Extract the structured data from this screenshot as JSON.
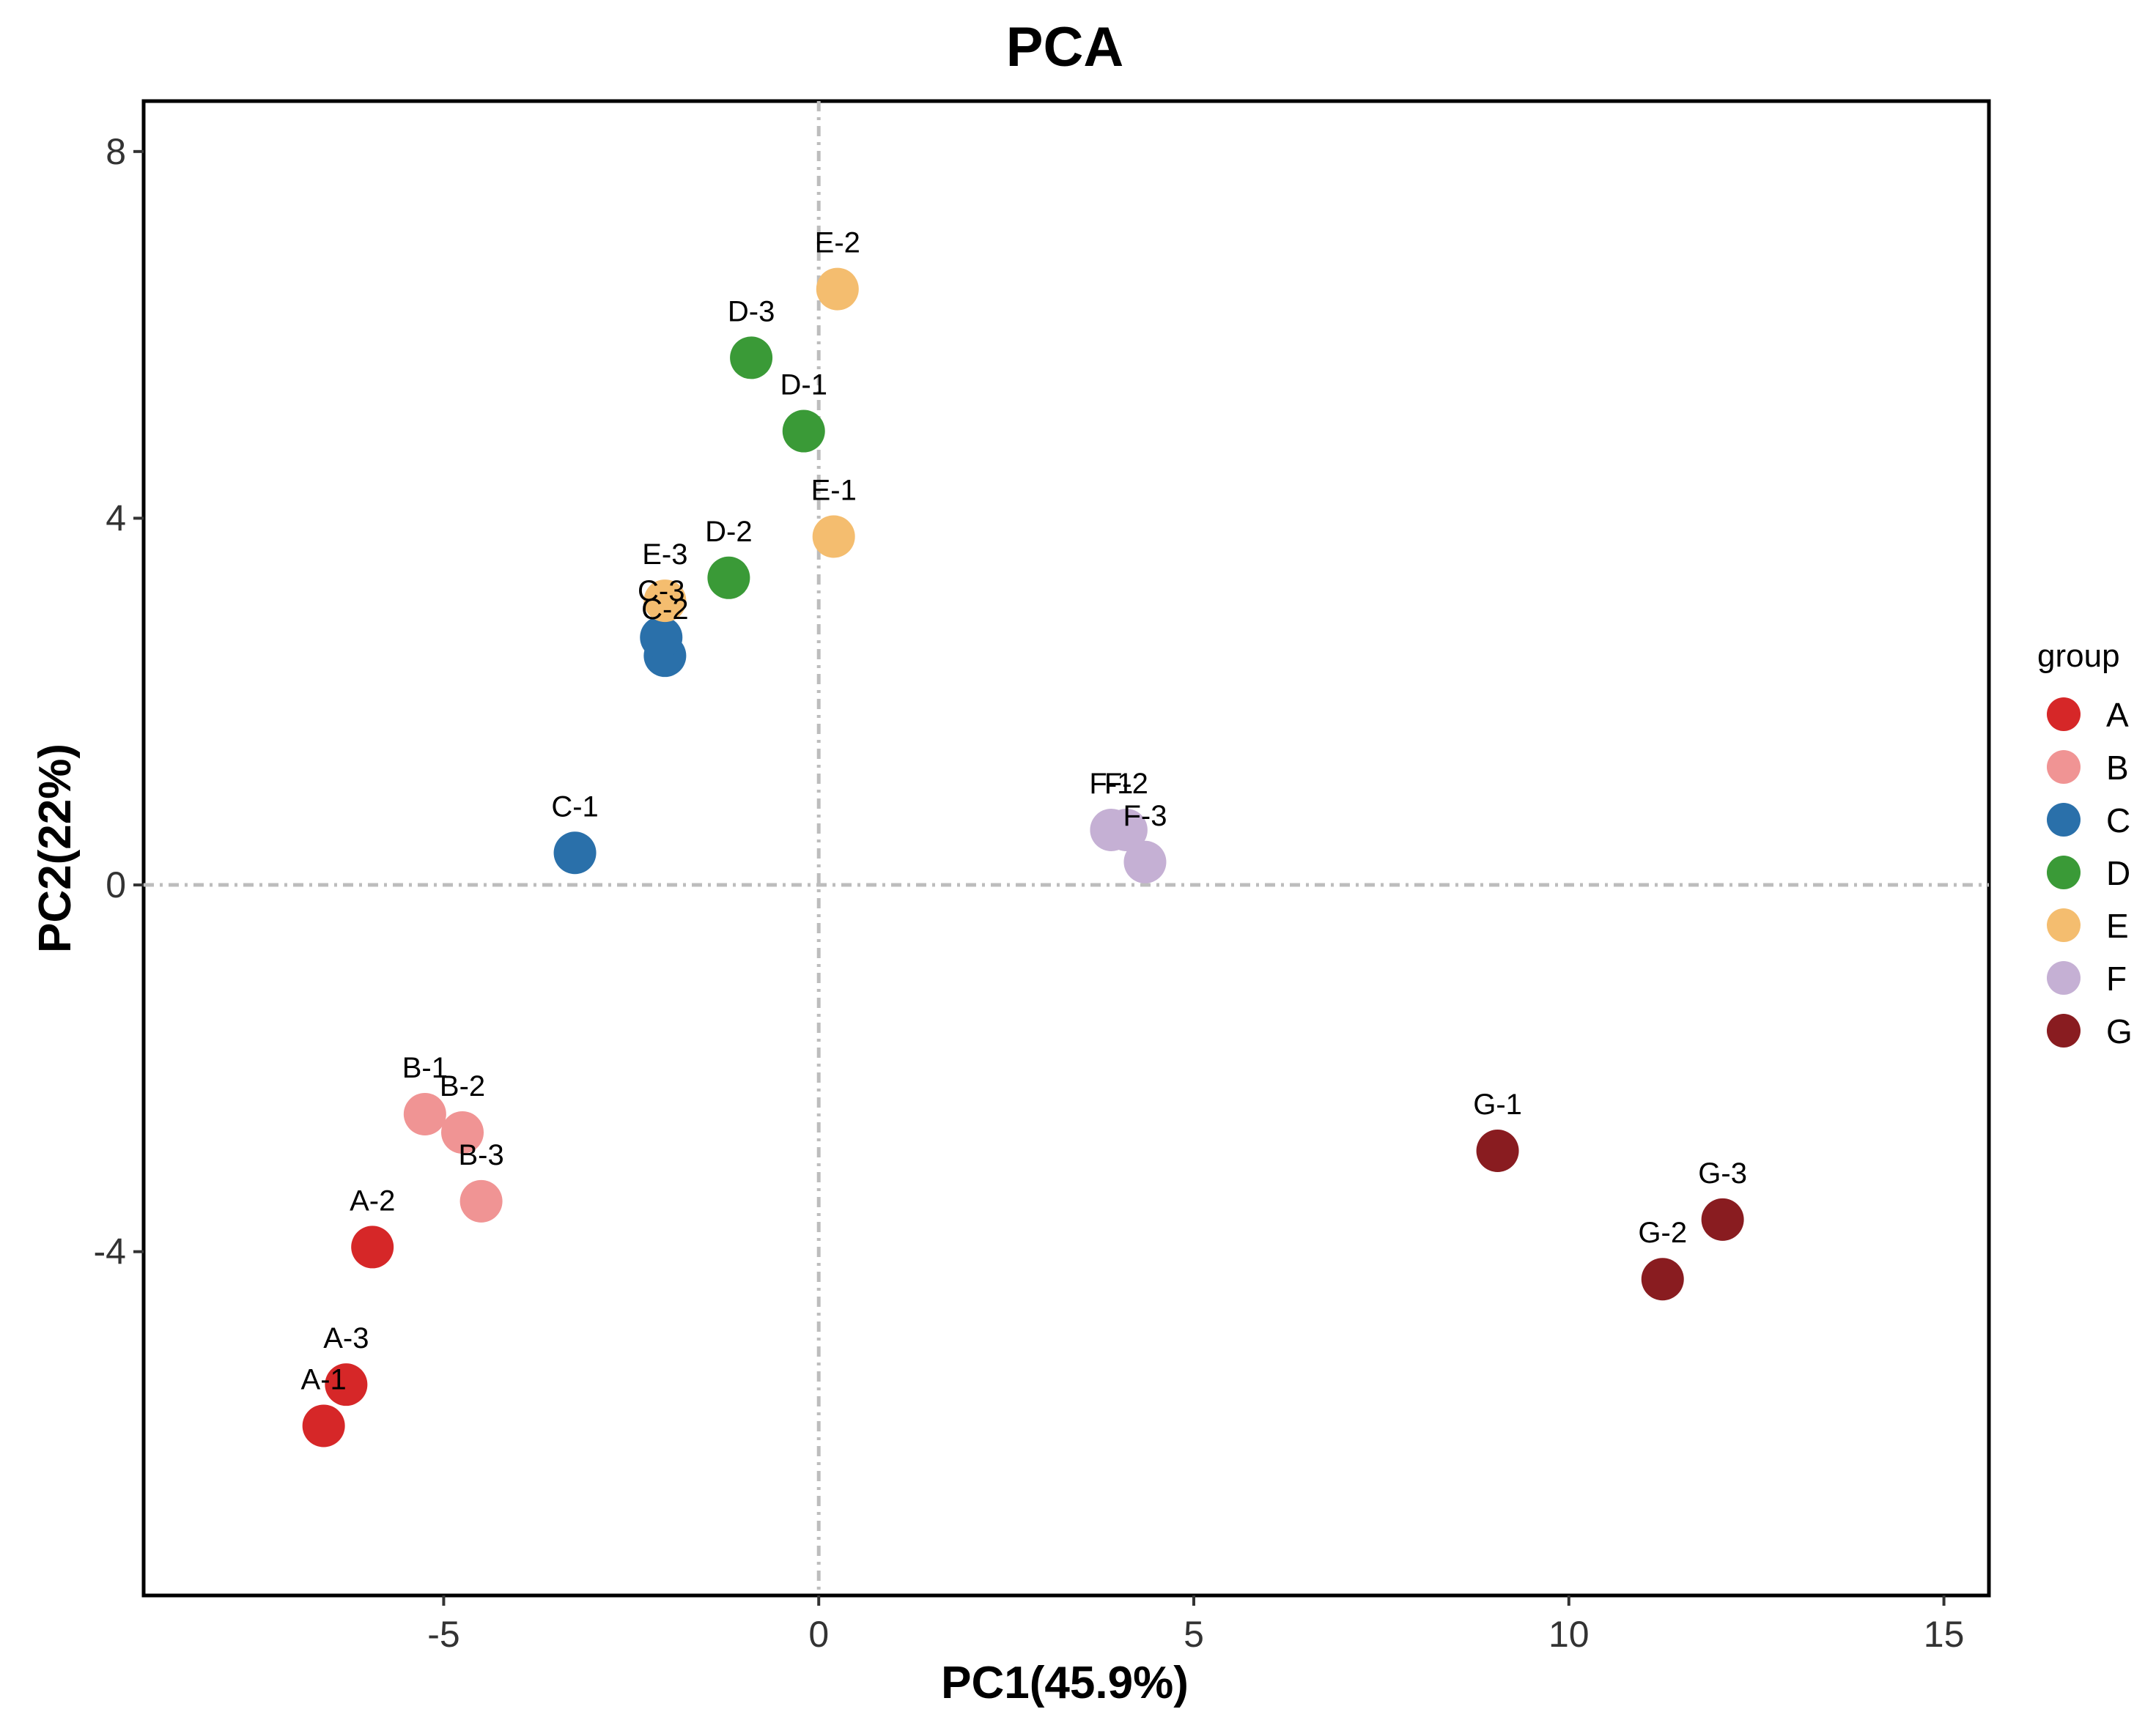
{
  "chart_data": {
    "type": "scatter",
    "title": "PCA",
    "xlabel": "PC1(45.9%)",
    "ylabel": "PC2(22%)",
    "xlim": [
      -9,
      15.6
    ],
    "ylim": [
      -7.75,
      8.55
    ],
    "xticks": [
      -5,
      0,
      5,
      10,
      15
    ],
    "xtick_labels": [
      "-5",
      "0",
      "5",
      "10",
      "15"
    ],
    "yticks": [
      -4,
      0,
      4,
      8
    ],
    "ytick_labels": [
      "-4",
      "0",
      "4",
      "8"
    ],
    "grid": false,
    "reference_lines": {
      "x": 0,
      "y": 0,
      "style": "dash-dot"
    },
    "legend": {
      "title": "group",
      "position": "right",
      "entries": [
        {
          "label": "A",
          "color": "#d62728"
        },
        {
          "label": "B",
          "color": "#f09494"
        },
        {
          "label": "C",
          "color": "#2a70aa"
        },
        {
          "label": "D",
          "color": "#3a9a37"
        },
        {
          "label": "E",
          "color": "#f4bd6f"
        },
        {
          "label": "F",
          "color": "#c5b0d4"
        },
        {
          "label": "G",
          "color": "#891c20"
        }
      ]
    },
    "points": [
      {
        "label": "A-1",
        "group": "A",
        "x": -6.6,
        "y": -5.9
      },
      {
        "label": "A-2",
        "group": "A",
        "x": -5.95,
        "y": -3.95
      },
      {
        "label": "A-3",
        "group": "A",
        "x": -6.3,
        "y": -5.45
      },
      {
        "label": "B-1",
        "group": "B",
        "x": -5.25,
        "y": -2.5
      },
      {
        "label": "B-2",
        "group": "B",
        "x": -4.75,
        "y": -2.7
      },
      {
        "label": "B-3",
        "group": "B",
        "x": -4.5,
        "y": -3.45
      },
      {
        "label": "C-1",
        "group": "C",
        "x": -3.25,
        "y": 0.35
      },
      {
        "label": "C-2",
        "group": "C",
        "x": -2.05,
        "y": 2.5
      },
      {
        "label": "C-3",
        "group": "C",
        "x": -2.1,
        "y": 2.7
      },
      {
        "label": "D-1",
        "group": "D",
        "x": -0.2,
        "y": 4.95
      },
      {
        "label": "D-2",
        "group": "D",
        "x": -1.2,
        "y": 3.35
      },
      {
        "label": "D-3",
        "group": "D",
        "x": -0.9,
        "y": 5.75
      },
      {
        "label": "E-1",
        "group": "E",
        "x": 0.2,
        "y": 3.8
      },
      {
        "label": "E-2",
        "group": "E",
        "x": 0.25,
        "y": 6.5
      },
      {
        "label": "E-3",
        "group": "E",
        "x": -2.05,
        "y": 3.1
      },
      {
        "label": "F-1",
        "group": "F",
        "x": 3.9,
        "y": 0.6
      },
      {
        "label": "F-2",
        "group": "F",
        "x": 4.1,
        "y": 0.6
      },
      {
        "label": "F-3",
        "group": "F",
        "x": 4.35,
        "y": 0.25
      },
      {
        "label": "G-1",
        "group": "G",
        "x": 9.05,
        "y": -2.9
      },
      {
        "label": "G-2",
        "group": "G",
        "x": 11.25,
        "y": -4.3
      },
      {
        "label": "G-3",
        "group": "G",
        "x": 12.05,
        "y": -3.65
      }
    ]
  }
}
